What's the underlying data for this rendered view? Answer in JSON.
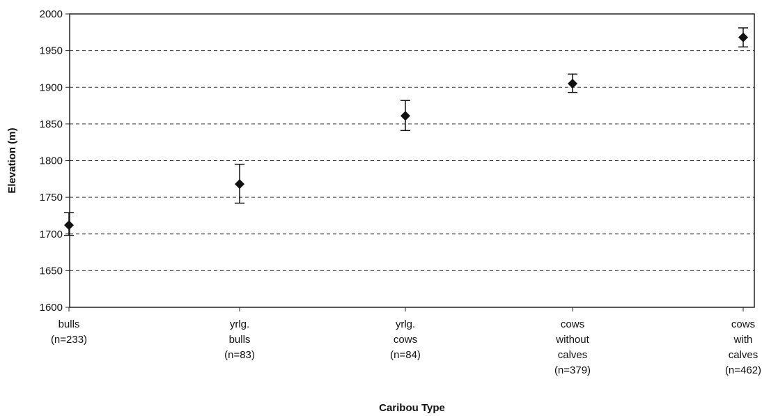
{
  "chart_data": {
    "type": "scatter",
    "title": "",
    "xlabel": "Caribou Type",
    "ylabel": "Elevation (m)",
    "ylim": [
      1600,
      2000
    ],
    "yticks": [
      1600,
      1650,
      1700,
      1750,
      1800,
      1850,
      1900,
      1950,
      2000
    ],
    "grid": true,
    "error_bars": true,
    "categories": [
      [
        "bulls",
        "(n=233)"
      ],
      [
        "yrlg.",
        "bulls",
        "(n=83)"
      ],
      [
        "yrlg.",
        "cows",
        "(n=84)"
      ],
      [
        "cows",
        "without",
        "calves",
        "(n=379)"
      ],
      [
        "cows",
        "with",
        "calves",
        "(n=462)"
      ]
    ],
    "values": [
      1712,
      1768,
      1861,
      1905,
      1968
    ],
    "error_low": [
      1698,
      1742,
      1841,
      1893,
      1955
    ],
    "error_high": [
      1729,
      1795,
      1882,
      1918,
      1981
    ]
  }
}
